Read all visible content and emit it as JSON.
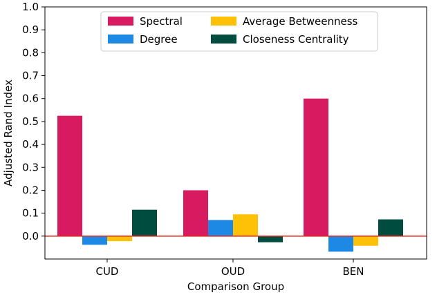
{
  "chart_data": {
    "type": "bar",
    "title": "",
    "xlabel": "Comparison Group",
    "ylabel": "Adjusted Rand Index",
    "categories": [
      "CUD",
      "OUD",
      "BEN"
    ],
    "ylim": [
      -0.1,
      1.0
    ],
    "yticks": [
      "0.0",
      "0.1",
      "0.2",
      "0.3",
      "0.4",
      "0.5",
      "0.6",
      "0.7",
      "0.8",
      "0.9",
      "1.0"
    ],
    "grid": false,
    "legend_position": "top-center",
    "reference_line": {
      "y": 0.0,
      "color": "#e8291c"
    },
    "series": [
      {
        "name": "Spectral",
        "color": "#d81b60",
        "values": [
          0.525,
          0.2,
          0.6
        ]
      },
      {
        "name": "Degree",
        "color": "#1e88e5",
        "values": [
          -0.038,
          0.07,
          -0.068
        ]
      },
      {
        "name": "Average Betweenness",
        "color": "#ffc107",
        "values": [
          -0.022,
          0.095,
          -0.042
        ]
      },
      {
        "name": "Closeness Centrality",
        "color": "#004d40",
        "values": [
          0.115,
          -0.027,
          0.073
        ]
      }
    ]
  }
}
